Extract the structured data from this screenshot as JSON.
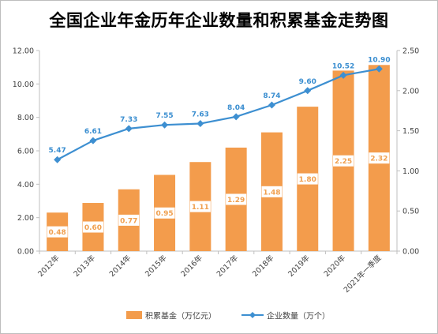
{
  "title": "全国企业年金历年企业数量和积累基金走势图",
  "colors": {
    "bar": "#f39c4c",
    "line": "#3d8fd1",
    "axis": "#bfbfbf"
  },
  "chart_data": {
    "type": "bar+line",
    "title": "全国企业年金历年企业数量和积累基金走势图",
    "categories": [
      "2012年",
      "2013年",
      "2014年",
      "2015年",
      "2016年",
      "2017年",
      "2018年",
      "2019年",
      "2020年",
      "2021年一季度"
    ],
    "series": [
      {
        "name": "积累基金（万亿元）",
        "type": "bar",
        "axis": "right",
        "values": [
          0.48,
          0.6,
          0.77,
          0.95,
          1.11,
          1.29,
          1.48,
          1.8,
          2.25,
          2.32
        ]
      },
      {
        "name": "企业数量（万个）",
        "type": "line",
        "axis": "left",
        "values": [
          5.47,
          6.61,
          7.33,
          7.55,
          7.63,
          8.04,
          8.74,
          9.6,
          10.52,
          10.9
        ]
      }
    ],
    "left_axis": {
      "ylim": [
        0,
        12
      ],
      "ticks": [
        "0.00",
        "2.00",
        "4.00",
        "6.00",
        "8.00",
        "10.00",
        "12.00"
      ]
    },
    "right_axis": {
      "ylim": [
        0,
        2.5
      ],
      "ticks": [
        "0.00",
        "0.50",
        "1.00",
        "1.50",
        "2.00",
        "2.50"
      ]
    },
    "grid": false,
    "legend": "bottom"
  }
}
